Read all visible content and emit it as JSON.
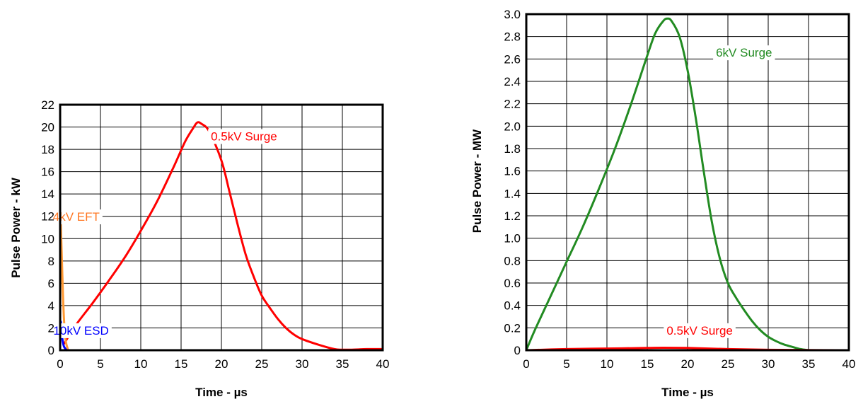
{
  "chart_data": [
    {
      "type": "line",
      "xlabel": "Time - µs",
      "ylabel": "Pulse Power - kW",
      "xlim": [
        0,
        40
      ],
      "ylim": [
        0,
        22
      ],
      "x_ticks": [
        0,
        5,
        10,
        15,
        20,
        25,
        30,
        35,
        40
      ],
      "y_ticks": [
        0,
        2,
        4,
        6,
        8,
        10,
        12,
        14,
        16,
        18,
        20,
        22
      ],
      "grid": true,
      "series": [
        {
          "name": "0.5kV Surge",
          "color": "#ff0000",
          "x": [
            0.5,
            2,
            4,
            6,
            8,
            10,
            12,
            14,
            15.5,
            16.5,
            17,
            17.5,
            18.5,
            20,
            21,
            22,
            23,
            24,
            25,
            26,
            27,
            28,
            29,
            30,
            32,
            34,
            35,
            36,
            38,
            40
          ],
          "y": [
            0.6,
            2.3,
            4.2,
            6.2,
            8.3,
            10.7,
            13.3,
            16.3,
            18.7,
            19.9,
            20.4,
            20.3,
            19.6,
            17.0,
            14.2,
            11.3,
            8.6,
            6.6,
            4.9,
            3.8,
            2.8,
            2.0,
            1.4,
            1.0,
            0.5,
            0.1,
            0.05,
            0.05,
            0.1,
            0.1
          ]
        },
        {
          "name": "4kV EFT",
          "color": "#ff9933",
          "x": [
            0,
            0.05,
            0.1,
            0.2,
            0.35,
            0.5,
            0.7,
            1.0
          ],
          "y": [
            0,
            11.0,
            11.0,
            8.5,
            5.0,
            2.5,
            0.8,
            0
          ]
        },
        {
          "name": "10kV ESD",
          "color": "#0000ff",
          "x": [
            0,
            0.05,
            0.12,
            0.2,
            0.35,
            0.5,
            0.8
          ],
          "y": [
            0,
            2.4,
            2.3,
            1.5,
            0.7,
            0.3,
            0
          ]
        }
      ],
      "annotations": [
        {
          "text": "0.5kV Surge",
          "color": "#ff0000",
          "x": 22.8,
          "y": 18.8
        },
        {
          "text": "4kV EFT",
          "color": "#ff7722",
          "x": 2.0,
          "y": 11.6
        },
        {
          "text": "10kV ESD",
          "color": "#0000ff",
          "x": 2.6,
          "y": 1.4
        }
      ]
    },
    {
      "type": "line",
      "xlabel": "Time - µs",
      "ylabel": "Pulse Power - MW",
      "xlim": [
        0,
        40
      ],
      "ylim": [
        0,
        3.0
      ],
      "x_ticks": [
        0,
        5,
        10,
        15,
        20,
        25,
        30,
        35,
        40
      ],
      "y_ticks": [
        "0",
        "0.2",
        "0.4",
        "0.6",
        "0.8",
        "1.0",
        "1.2",
        "1.4",
        "1.6",
        "1.8",
        "2.0",
        "2.2",
        "2.4",
        "2.6",
        "2.8",
        "3.0"
      ],
      "grid": true,
      "series": [
        {
          "name": "6kV Surge",
          "color": "#228b22",
          "x": [
            0,
            1,
            3,
            5,
            7,
            9,
            11,
            13,
            15,
            16,
            17,
            17.5,
            18,
            19,
            20,
            21,
            22,
            23,
            24,
            25,
            26,
            27,
            28,
            29,
            30,
            31,
            32,
            33,
            34,
            35
          ],
          "y": [
            0,
            0.17,
            0.48,
            0.79,
            1.1,
            1.44,
            1.8,
            2.2,
            2.63,
            2.83,
            2.94,
            2.96,
            2.94,
            2.8,
            2.5,
            2.08,
            1.6,
            1.15,
            0.82,
            0.6,
            0.47,
            0.36,
            0.26,
            0.18,
            0.12,
            0.08,
            0.05,
            0.03,
            0.01,
            0
          ]
        },
        {
          "name": "0.5kV Surge",
          "color": "#ff0000",
          "x": [
            0,
            5,
            10,
            15,
            17,
            20,
            25,
            30,
            35,
            40
          ],
          "y": [
            0,
            0.01,
            0.015,
            0.02,
            0.022,
            0.02,
            0.01,
            0.004,
            0.001,
            0
          ]
        }
      ],
      "annotations": [
        {
          "text": "6kV Surge",
          "color": "#228b22",
          "x": 27.0,
          "y": 2.62
        },
        {
          "text": "0.5kV Surge",
          "color": "#ff0000",
          "x": 21.5,
          "y": 0.14
        }
      ]
    }
  ]
}
